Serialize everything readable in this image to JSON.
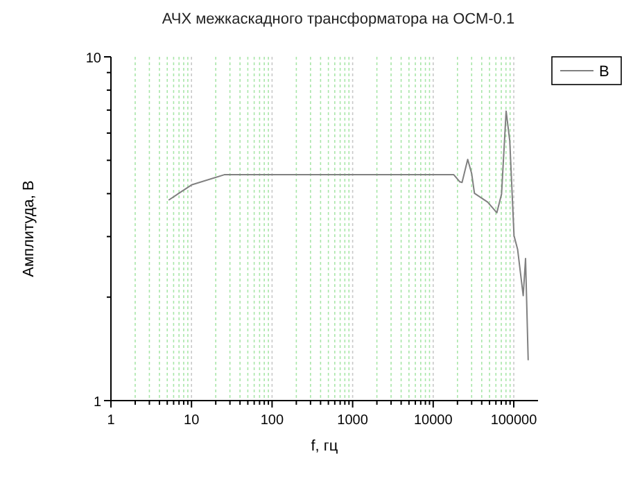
{
  "chart_data": {
    "type": "line",
    "title": "АЧХ межкаскадного трансформатора на ОСМ-0.1",
    "xlabel": "f, гц",
    "ylabel": "Амплитуда, В",
    "log": "xy",
    "grid": "x",
    "legend": "top right",
    "marker": "none",
    "line_style": "solid",
    "xlim": [
      1,
      200000
    ],
    "xticks": [
      1,
      {
        "value": 2,
        "label": null
      },
      {
        "value": 3,
        "label": null
      },
      {
        "value": 4,
        "label": null
      },
      {
        "value": 5,
        "label": null
      },
      {
        "value": 6,
        "label": null
      },
      {
        "value": 7,
        "label": null
      },
      {
        "value": 8,
        "label": null
      },
      {
        "value": 9,
        "label": null
      },
      10,
      {
        "value": 20,
        "label": null
      },
      {
        "value": 30,
        "label": null
      },
      {
        "value": 40,
        "label": null
      },
      {
        "value": 50,
        "label": null
      },
      {
        "value": 60,
        "label": null
      },
      {
        "value": 70,
        "label": null
      },
      {
        "value": 80,
        "label": null
      },
      {
        "value": 90,
        "label": null
      },
      100,
      {
        "value": 200,
        "label": null
      },
      {
        "value": 300,
        "label": null
      },
      {
        "value": 400,
        "label": null
      },
      {
        "value": 500,
        "label": null
      },
      {
        "value": 600,
        "label": null
      },
      {
        "value": 700,
        "label": null
      },
      {
        "value": 800,
        "label": null
      },
      {
        "value": 900,
        "label": null
      },
      1000,
      {
        "value": 2000,
        "label": null
      },
      {
        "value": 3000,
        "label": null
      },
      {
        "value": 4000,
        "label": null
      },
      {
        "value": 5000,
        "label": null
      },
      {
        "value": 6000,
        "label": null
      },
      {
        "value": 7000,
        "label": null
      },
      {
        "value": 8000,
        "label": null
      },
      {
        "value": 9000,
        "label": null
      },
      10000,
      {
        "value": 20000,
        "label": null
      },
      {
        "value": 30000,
        "label": null
      },
      {
        "value": 40000,
        "label": null
      },
      {
        "value": 50000,
        "label": null
      },
      {
        "value": 60000,
        "label": null
      },
      {
        "value": 70000,
        "label": null
      },
      {
        "value": 80000,
        "label": null
      },
      {
        "value": 90000,
        "label": null
      },
      100000
    ],
    "ylim": [
      1,
      10
    ],
    "yticks": [
      1,
      {
        "value": 2,
        "label": null
      },
      {
        "value": 3,
        "label": null
      },
      {
        "value": 4,
        "label": null
      },
      {
        "value": 5,
        "label": null
      },
      {
        "value": 6,
        "label": null
      },
      {
        "value": 7,
        "label": null
      },
      {
        "value": 8,
        "label": null
      },
      {
        "value": 9,
        "label": null
      },
      10
    ],
    "series": [
      {
        "name": "B",
        "color": "#808080",
        "x": [
          5.2,
          10,
          25.5,
          18000,
          21400,
          22800,
          26800,
          30000,
          32500,
          47400,
          61600,
          70500,
          80400,
          89200,
          100700,
          111700,
          131000,
          140000,
          151000
        ],
        "values": [
          3.83,
          4.24,
          4.54,
          4.54,
          4.33,
          4.31,
          5.03,
          4.58,
          4.01,
          3.78,
          3.52,
          3.99,
          6.95,
          5.69,
          3.02,
          2.75,
          2.02,
          2.59,
          1.31
        ]
      }
    ]
  }
}
